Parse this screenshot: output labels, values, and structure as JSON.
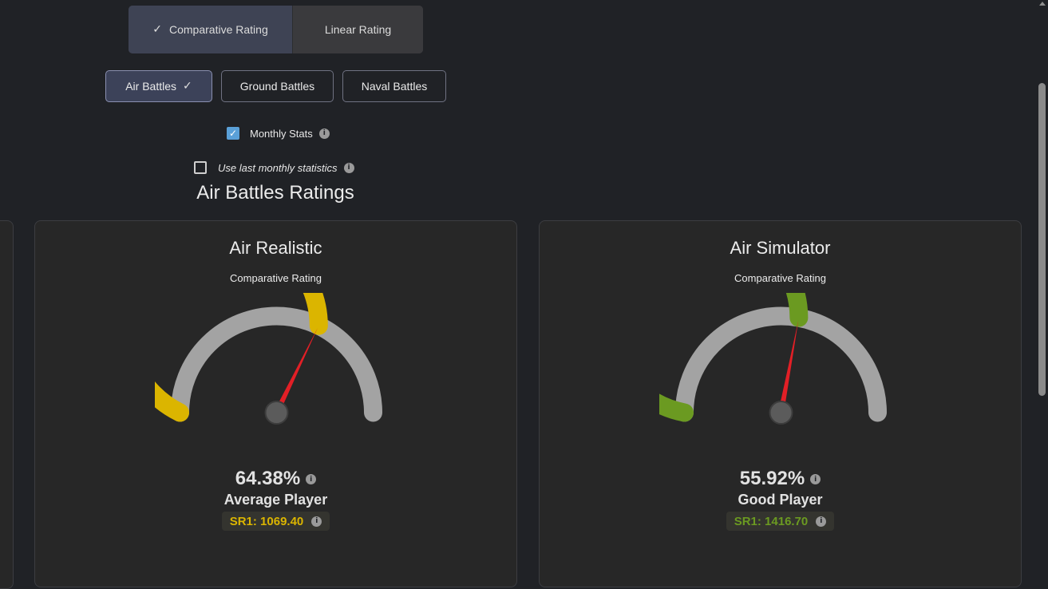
{
  "rating_toggle": {
    "options": [
      {
        "label": "Comparative Rating",
        "selected": true
      },
      {
        "label": "Linear Rating",
        "selected": false
      }
    ]
  },
  "battle_modes": [
    {
      "label": "Air Battles",
      "selected": true
    },
    {
      "label": "Ground Battles",
      "selected": false
    },
    {
      "label": "Naval Battles",
      "selected": false
    }
  ],
  "options": {
    "monthly_stats": {
      "label": "Monthly Stats",
      "checked": true
    },
    "use_last_monthly": {
      "label": "Use last monthly statistics",
      "checked": false
    }
  },
  "icons": {
    "check": "✓",
    "info": "i"
  },
  "section_title": "Air Battles Ratings",
  "cards": [
    {
      "title": "Air Realistic",
      "subtitle": "Comparative Rating",
      "percent_text": "64.38%",
      "percent_value": 64.38,
      "rank_label": "Average Player",
      "sr_text": "SR1: 1069.40",
      "color": "#dbb500"
    },
    {
      "title": "Air Simulator",
      "subtitle": "Comparative Rating",
      "percent_text": "55.92%",
      "percent_value": 55.92,
      "rank_label": "Good Player",
      "sr_text": "SR1: 1416.70",
      "color": "#6b9a21"
    }
  ],
  "colors": {
    "gauge_track": "#a3a3a3",
    "needle": "#e21f26",
    "hub": "#5b5b5b"
  }
}
